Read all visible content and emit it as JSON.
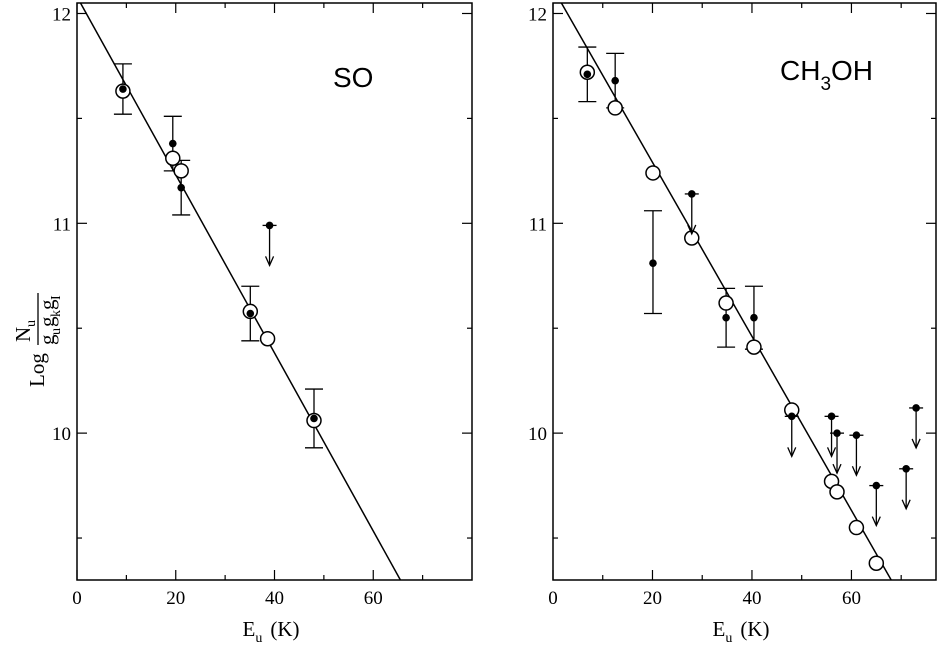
{
  "figure": {
    "ylabel": {
      "log": "Log",
      "numerator_main": "N",
      "numerator_sub": "u",
      "denominator": [
        {
          "main": "g",
          "sub": "u"
        },
        {
          "main": "g",
          "sub": "k"
        },
        {
          "main": "g",
          "sub": "I"
        }
      ]
    }
  },
  "chart_data": [
    {
      "type": "scatter",
      "species": {
        "main": "SO",
        "sub": "",
        "tail": ""
      },
      "xlabel": {
        "main": "E",
        "sub": "u",
        "unit": "(K)"
      },
      "xlim": [
        0,
        80
      ],
      "ylim": [
        9.3,
        12.05
      ],
      "x_ticks": [
        0,
        20,
        40,
        60
      ],
      "x_minor_ticks": [
        10,
        30,
        50,
        70
      ],
      "y_ticks": [
        10,
        11,
        12
      ],
      "y_minor_ticks": [
        9.5,
        10.5,
        11.5
      ],
      "fit_line": {
        "x": [
          0,
          65.5
        ],
        "y": [
          12.08,
          9.3
        ]
      },
      "open_points": [
        {
          "x": 9.3,
          "y": 11.63
        },
        {
          "x": 19.4,
          "y": 11.31
        },
        {
          "x": 21.1,
          "y": 11.25
        },
        {
          "x": 35.1,
          "y": 10.58
        },
        {
          "x": 38.6,
          "y": 10.45
        },
        {
          "x": 48.0,
          "y": 10.06
        }
      ],
      "filled_points": [
        {
          "x": 9.3,
          "y": 11.64,
          "err_up": 0.12,
          "err_down": 0.12
        },
        {
          "x": 19.4,
          "y": 11.38,
          "err_up": 0.13,
          "err_down": 0.13
        },
        {
          "x": 21.1,
          "y": 11.17,
          "err_up": 0.13,
          "err_down": 0.13
        },
        {
          "x": 35.1,
          "y": 10.57,
          "err_up": 0.13,
          "err_down": 0.13
        },
        {
          "x": 48.0,
          "y": 10.07,
          "err_up": 0.14,
          "err_down": 0.14
        }
      ],
      "upper_limits": [
        {
          "x": 39.0,
          "y": 10.99
        }
      ]
    },
    {
      "type": "scatter",
      "species": {
        "main": "CH",
        "sub": "3",
        "tail": "OH"
      },
      "xlabel": {
        "main": "E",
        "sub": "u",
        "unit": "(K)"
      },
      "xlim": [
        0,
        77
      ],
      "ylim": [
        9.3,
        12.05
      ],
      "x_ticks": [
        0,
        20,
        40,
        60
      ],
      "x_minor_ticks": [
        10,
        30,
        50,
        70
      ],
      "y_ticks": [
        10,
        11,
        12
      ],
      "y_minor_ticks": [
        9.5,
        10.5,
        11.5
      ],
      "fit_line": {
        "x": [
          0,
          68
        ],
        "y": [
          12.12,
          9.3
        ]
      },
      "open_points": [
        {
          "x": 6.9,
          "y": 11.72
        },
        {
          "x": 12.5,
          "y": 11.55
        },
        {
          "x": 20.1,
          "y": 11.24
        },
        {
          "x": 27.9,
          "y": 10.93
        },
        {
          "x": 34.8,
          "y": 10.62
        },
        {
          "x": 40.4,
          "y": 10.41
        },
        {
          "x": 48.0,
          "y": 10.11
        },
        {
          "x": 56.0,
          "y": 9.77
        },
        {
          "x": 57.1,
          "y": 9.72
        },
        {
          "x": 61.0,
          "y": 9.55
        },
        {
          "x": 65.0,
          "y": 9.38
        }
      ],
      "filled_points": [
        {
          "x": 6.9,
          "y": 11.71,
          "err_up": 0.13,
          "err_down": 0.13
        },
        {
          "x": 12.5,
          "y": 11.68,
          "err_up": 0.13,
          "err_down": 0.13
        },
        {
          "x": 20.1,
          "y": 10.81,
          "err_up": 0.25,
          "err_down": 0.24
        },
        {
          "x": 34.8,
          "y": 10.55,
          "err_up": 0.14,
          "err_down": 0.14
        },
        {
          "x": 40.4,
          "y": 10.55,
          "err_up": 0.15,
          "err_down": 0.15
        }
      ],
      "upper_limits": [
        {
          "x": 27.9,
          "y": 11.14
        },
        {
          "x": 48.0,
          "y": 10.08
        },
        {
          "x": 56.0,
          "y": 10.08
        },
        {
          "x": 57.1,
          "y": 10.0
        },
        {
          "x": 61.0,
          "y": 9.99
        },
        {
          "x": 65.0,
          "y": 9.75
        },
        {
          "x": 71.0,
          "y": 9.83
        },
        {
          "x": 73.0,
          "y": 10.12
        }
      ]
    }
  ]
}
